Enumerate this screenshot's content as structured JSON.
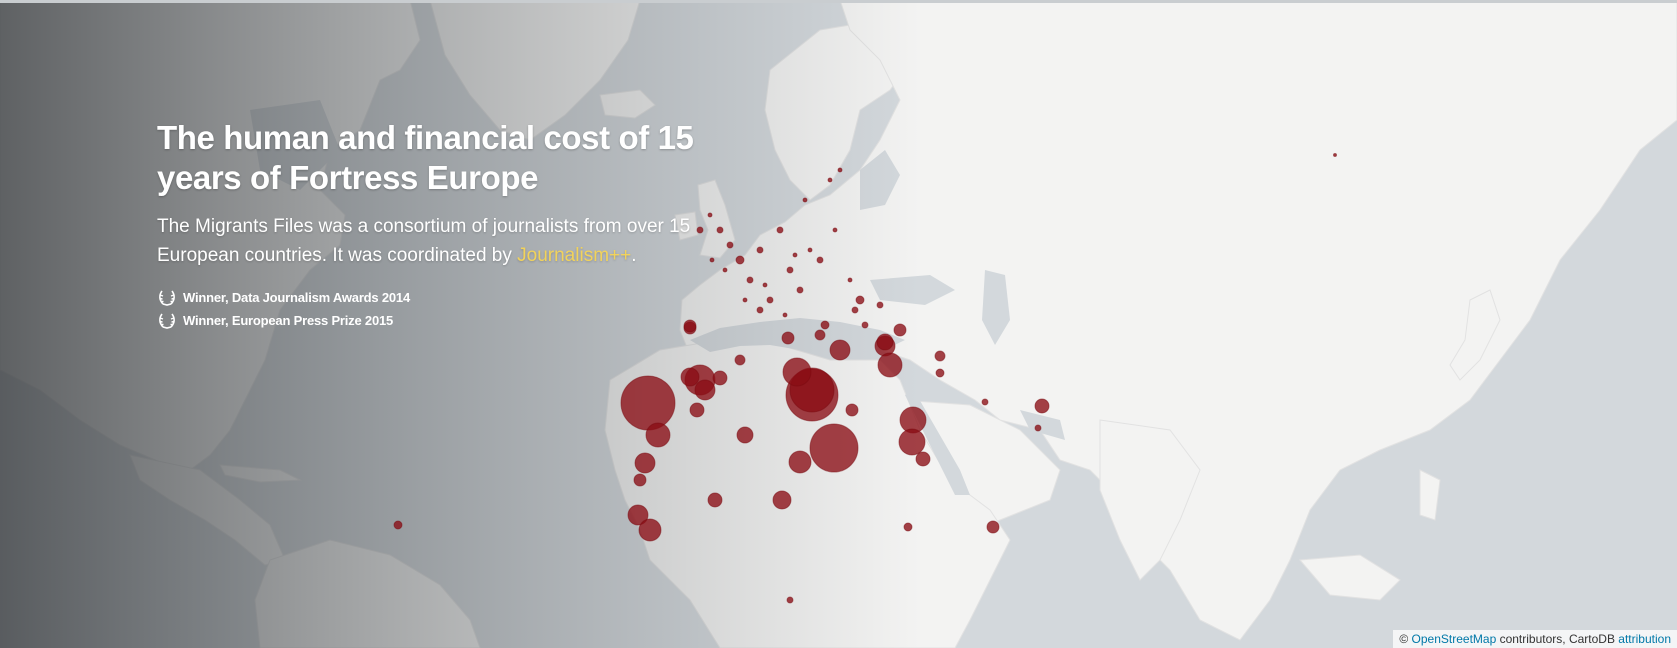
{
  "headline": {
    "title": "The human and financial cost of 15 years of Fortress Europe",
    "subtitle_before_link": "The Migrants Files was a consortium of journalists from over 15 European countries. It was coordinated by ",
    "subtitle_link": "Journalism++",
    "subtitle_after_link": "."
  },
  "awards": [
    {
      "icon": "laurel-icon",
      "label": "Winner, Data Journalism Awards 2014"
    },
    {
      "icon": "laurel-icon",
      "label": "Winner, European Press Prize 2015"
    }
  ],
  "attribution": {
    "prefix": "© ",
    "osm_link": "OpenStreetMap",
    "middle": " contributors, CartoDB ",
    "attribution_link": "attribution"
  },
  "colors": {
    "ocean": "#d3d8dc",
    "land": "#f3f3f2",
    "marker": "#8b0d14",
    "link_highlight": "#f2d35b",
    "attribution_link": "#0078a8"
  }
}
